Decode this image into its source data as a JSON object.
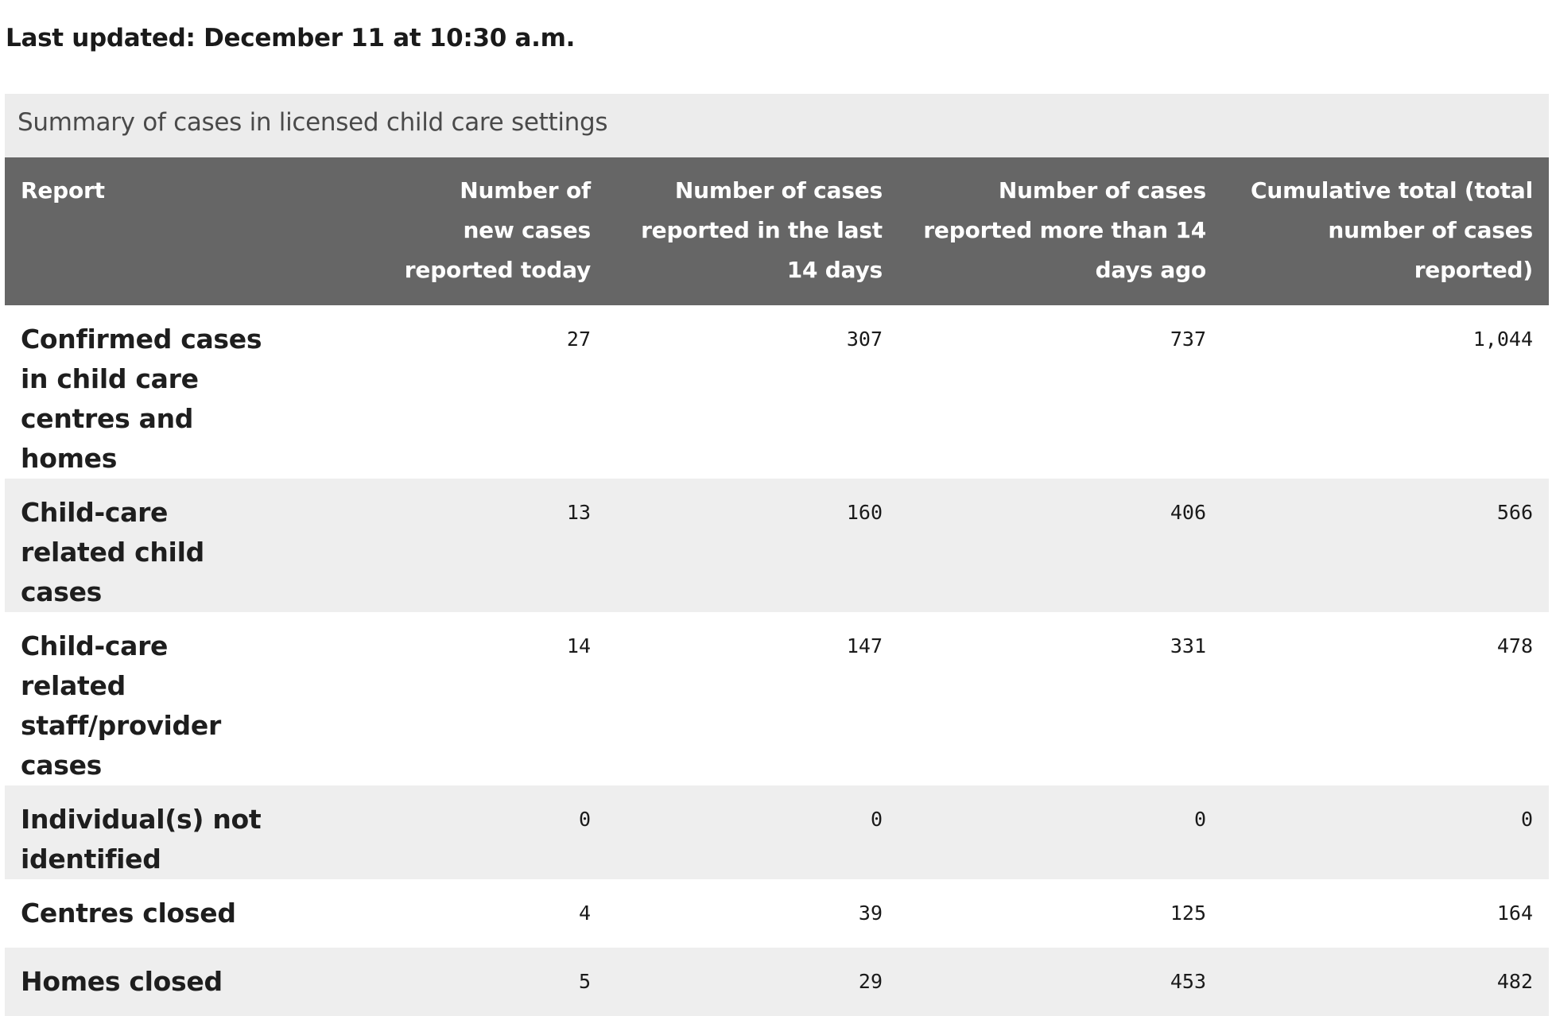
{
  "last_updated": "Last updated: December 11 at 10:30 a.m.",
  "table": {
    "caption": "Summary of cases in licensed child care settings",
    "headers": [
      "Report",
      "Number of new cases reported today",
      "Number of cases reported in the last 14 days",
      "Number of cases reported more than 14 days ago",
      "Cumulative total (total number of cases reported)"
    ],
    "rows": [
      {
        "label": "Confirmed cases in child care centres and homes",
        "values": [
          "27",
          "307",
          "737",
          "1,044"
        ]
      },
      {
        "label": "Child-care related child cases",
        "values": [
          "13",
          "160",
          "406",
          "566"
        ]
      },
      {
        "label": "Child-care related staff/provider cases",
        "values": [
          "14",
          "147",
          "331",
          "478"
        ]
      },
      {
        "label": "Individual(s) not identified",
        "values": [
          "0",
          "0",
          "0",
          "0"
        ]
      },
      {
        "label": "Centres closed",
        "values": [
          "4",
          "39",
          "125",
          "164"
        ]
      },
      {
        "label": "Homes closed",
        "values": [
          "5",
          "29",
          "453",
          "482"
        ]
      }
    ]
  },
  "colors": {
    "header_bg": "#666666",
    "caption_bg": "#ececec",
    "row_alt_bg": "#eeeeee",
    "header_text": "#ffffff"
  }
}
